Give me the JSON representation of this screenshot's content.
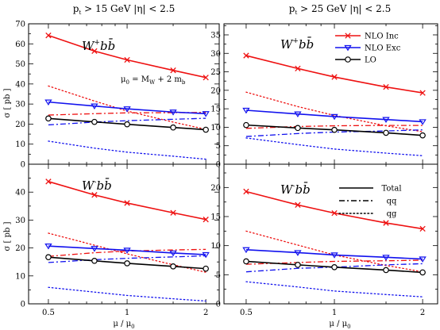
{
  "headers": {
    "left": {
      "pre": "p",
      "sub": "t",
      "post": " > 15 GeV   |η| < 2.5"
    },
    "right": {
      "pre": "p",
      "sub": "t",
      "post": " > 25 GeV   |η| < 2.5"
    }
  },
  "axis": {
    "ylabel": "σ  [ pb ]",
    "xlabel": {
      "pre": "μ / μ",
      "sub": "0"
    },
    "xticks": [
      "0.5",
      "1",
      "2"
    ]
  },
  "annotation": {
    "pre": "μ",
    "sub0": "0",
    "mid": " = M",
    "subW": "W",
    "mid2": " + 2 m",
    "subb": "b"
  },
  "legend_top": [
    {
      "label": "NLO Inc",
      "color": "#ee1111",
      "marker": "x"
    },
    {
      "label": "NLO Exc",
      "color": "#1111ee",
      "marker": "triangle"
    },
    {
      "label": "LO",
      "color": "#000000",
      "marker": "circle"
    }
  ],
  "legend_bottom": [
    {
      "label": "Total",
      "style": "solid"
    },
    {
      "label": "qq",
      "style": "dashdot"
    },
    {
      "label": "qg",
      "style": "dotted"
    }
  ],
  "colors": {
    "nlo_inc": "#ee1111",
    "nlo_exc": "#1111ee",
    "lo": "#000000"
  },
  "chart_data": [
    {
      "type": "line",
      "panel": "top-left",
      "process": {
        "main": "W",
        "sup": "+",
        "rest": "bb̄"
      },
      "xscale": "log",
      "x": [
        0.5,
        0.75,
        1,
        1.5,
        2
      ],
      "ylim": [
        0,
        70
      ],
      "yticks": [
        0,
        10,
        20,
        30,
        40,
        50,
        60,
        70
      ],
      "series": [
        {
          "name": "NLO Inc",
          "group": "nlo_inc",
          "style": "solid",
          "marker": "x",
          "values": [
            64.2,
            56.4,
            52.0,
            46.8,
            43.2
          ]
        },
        {
          "name": "NLO Inc qq",
          "group": "nlo_inc",
          "style": "dashdot",
          "values": [
            24.5,
            25.2,
            25.6,
            25.7,
            25.8
          ]
        },
        {
          "name": "NLO Inc qg",
          "group": "nlo_inc",
          "style": "dotted",
          "values": [
            39.0,
            31.5,
            26.5,
            21.0,
            17.4
          ]
        },
        {
          "name": "NLO Exc",
          "group": "nlo_exc",
          "style": "solid",
          "marker": "triangle",
          "values": [
            31.0,
            29.0,
            27.6,
            26.0,
            25.2
          ]
        },
        {
          "name": "NLO Exc qq",
          "group": "nlo_exc",
          "style": "dashdot",
          "values": [
            19.6,
            21.0,
            21.7,
            22.4,
            22.9
          ]
        },
        {
          "name": "NLO Exc qg",
          "group": "nlo_exc",
          "style": "dotted",
          "values": [
            11.5,
            8.0,
            6.0,
            4.0,
            2.5
          ]
        },
        {
          "name": "LO",
          "group": "lo",
          "style": "solid",
          "marker": "circle",
          "values": [
            22.8,
            21.1,
            19.9,
            18.3,
            17.2
          ]
        }
      ]
    },
    {
      "type": "line",
      "panel": "top-right",
      "process": {
        "main": "W",
        "sup": "+",
        "rest": "bb̄"
      },
      "xscale": "log",
      "x": [
        0.5,
        0.75,
        1,
        1.5,
        2
      ],
      "ylim": [
        0,
        38
      ],
      "yticks": [
        0,
        5,
        10,
        15,
        20,
        25,
        30,
        35
      ],
      "series": [
        {
          "name": "NLO Inc",
          "group": "nlo_inc",
          "style": "solid",
          "marker": "x",
          "values": [
            29.4,
            25.9,
            23.6,
            20.9,
            19.3
          ]
        },
        {
          "name": "NLO Inc qq",
          "group": "nlo_inc",
          "style": "dashdot",
          "values": [
            9.7,
            10.2,
            10.4,
            10.5,
            10.5
          ]
        },
        {
          "name": "NLO Inc qg",
          "group": "nlo_inc",
          "style": "dotted",
          "values": [
            19.5,
            15.6,
            13.2,
            10.4,
            8.8
          ]
        },
        {
          "name": "NLO Exc",
          "group": "nlo_exc",
          "style": "solid",
          "marker": "triangle",
          "values": [
            14.6,
            13.6,
            12.9,
            12.1,
            11.5
          ]
        },
        {
          "name": "NLO Exc qq",
          "group": "nlo_exc",
          "style": "dashdot",
          "values": [
            7.5,
            8.3,
            8.7,
            9.0,
            9.3
          ]
        },
        {
          "name": "NLO Exc qg",
          "group": "nlo_exc",
          "style": "dotted",
          "values": [
            7.1,
            5.3,
            4.1,
            3.0,
            2.3
          ]
        },
        {
          "name": "LO",
          "group": "lo",
          "style": "solid",
          "marker": "circle",
          "values": [
            10.6,
            9.8,
            9.3,
            8.5,
            7.8
          ]
        }
      ]
    },
    {
      "type": "line",
      "panel": "bottom-left",
      "process": {
        "main": "W",
        "sup": "-",
        "rest": "bb̄"
      },
      "xscale": "log",
      "x": [
        0.5,
        0.75,
        1,
        1.5,
        2
      ],
      "ylim": [
        0,
        50
      ],
      "yticks": [
        0,
        10,
        20,
        30,
        40
      ],
      "series": [
        {
          "name": "NLO Inc",
          "group": "nlo_inc",
          "style": "solid",
          "marker": "x",
          "values": [
            43.8,
            39.0,
            36.1,
            32.6,
            30.2
          ]
        },
        {
          "name": "NLO Inc qq",
          "group": "nlo_inc",
          "style": "dashdot",
          "values": [
            17.0,
            18.3,
            18.9,
            19.3,
            19.5
          ]
        },
        {
          "name": "NLO Inc qg",
          "group": "nlo_inc",
          "style": "dotted",
          "values": [
            25.3,
            21.0,
            17.9,
            14.0,
            11.3
          ]
        },
        {
          "name": "NLO Exc",
          "group": "nlo_exc",
          "style": "solid",
          "marker": "triangle",
          "values": [
            20.7,
            19.8,
            19.2,
            18.2,
            17.6
          ]
        },
        {
          "name": "NLO Exc qq",
          "group": "nlo_exc",
          "style": "dashdot",
          "values": [
            14.8,
            15.8,
            16.3,
            16.8,
            17.2
          ]
        },
        {
          "name": "NLO Exc qg",
          "group": "nlo_exc",
          "style": "dotted",
          "values": [
            5.9,
            4.2,
            3.0,
            1.8,
            1.0
          ]
        },
        {
          "name": "LO",
          "group": "lo",
          "style": "solid",
          "marker": "circle",
          "values": [
            16.7,
            15.4,
            14.5,
            13.4,
            12.6
          ]
        }
      ]
    },
    {
      "type": "line",
      "panel": "bottom-right",
      "process": {
        "main": "W",
        "sup": "-",
        "rest": "bb̄"
      },
      "xscale": "log",
      "x": [
        0.5,
        0.75,
        1,
        1.5,
        2
      ],
      "ylim": [
        0,
        24
      ],
      "yticks": [
        0,
        5,
        10,
        15,
        20
      ],
      "series": [
        {
          "name": "NLO Inc",
          "group": "nlo_inc",
          "style": "solid",
          "marker": "x",
          "values": [
            19.3,
            17.0,
            15.6,
            13.9,
            12.9
          ]
        },
        {
          "name": "NLO Inc qq",
          "group": "nlo_inc",
          "style": "dashdot",
          "values": [
            6.8,
            7.1,
            7.3,
            7.4,
            7.5
          ]
        },
        {
          "name": "NLO Inc qg",
          "group": "nlo_inc",
          "style": "dotted",
          "values": [
            12.5,
            10.1,
            8.4,
            6.6,
            5.5
          ]
        },
        {
          "name": "NLO Exc",
          "group": "nlo_exc",
          "style": "solid",
          "marker": "triangle",
          "values": [
            9.3,
            8.8,
            8.4,
            8.0,
            7.7
          ]
        },
        {
          "name": "NLO Exc qq",
          "group": "nlo_exc",
          "style": "dashdot",
          "values": [
            5.5,
            6.1,
            6.3,
            6.7,
            6.9
          ]
        },
        {
          "name": "NLO Exc qg",
          "group": "nlo_exc",
          "style": "dotted",
          "values": [
            3.8,
            2.9,
            2.2,
            1.6,
            1.2
          ]
        },
        {
          "name": "LO",
          "group": "lo",
          "style": "solid",
          "marker": "circle",
          "values": [
            7.3,
            6.7,
            6.3,
            5.8,
            5.4
          ]
        }
      ]
    }
  ]
}
